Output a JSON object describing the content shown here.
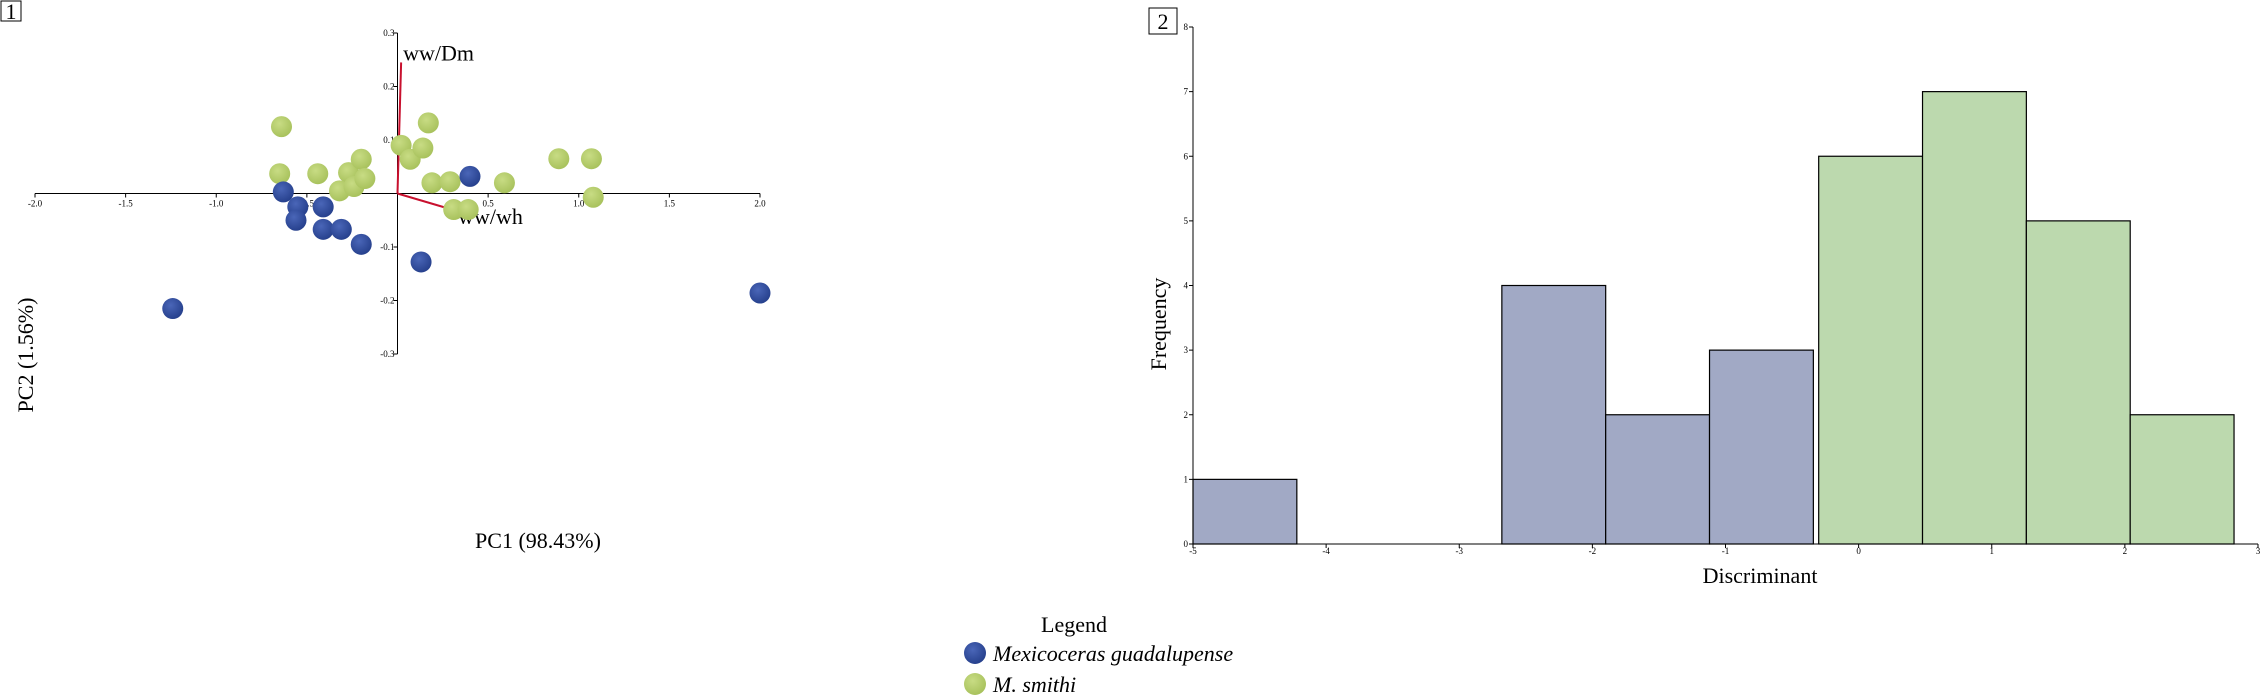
{
  "panel1": {
    "number": "1"
  },
  "panel2": {
    "number": "2"
  },
  "legend": {
    "title": "Legend",
    "items": [
      {
        "label": "Mexicoceras guadalupense",
        "color": "#2e4a9a"
      },
      {
        "label": "M. smithi",
        "color": "#b4cc6a"
      }
    ]
  },
  "chart_data": [
    {
      "type": "scatter",
      "title": "",
      "xlabel": "PC1 (98.43%)",
      "ylabel": "PC2 (1.56%)",
      "xlim": [
        -2.0,
        2.0
      ],
      "ylim": [
        -0.3,
        0.3
      ],
      "xticks": [
        "-2.0",
        "-1.5",
        "-1.0",
        "-0.5",
        "0.5",
        "1.0",
        "1.5",
        "2.0"
      ],
      "yticks": [
        "0.3",
        "0.2",
        "0.1",
        "-0.1",
        "-0.2",
        "-0.3"
      ],
      "grid": false,
      "series": [
        {
          "name": "Mexicoceras guadalupense",
          "color": "#2e4a9a",
          "points": [
            [
              -0.63,
              0.003
            ],
            [
              -0.55,
              -0.025
            ],
            [
              -0.56,
              -0.05
            ],
            [
              -0.41,
              -0.025
            ],
            [
              -0.41,
              -0.067
            ],
            [
              -0.31,
              -0.067
            ],
            [
              -0.2,
              -0.095
            ],
            [
              0.13,
              -0.128
            ],
            [
              0.4,
              0.032
            ],
            [
              -1.24,
              -0.215
            ],
            [
              2.0,
              -0.186
            ]
          ]
        },
        {
          "name": "M. smithi",
          "color": "#b4cc6a",
          "points": [
            [
              -0.64,
              0.125
            ],
            [
              -0.65,
              0.037
            ],
            [
              -0.44,
              0.037
            ],
            [
              -0.27,
              0.039
            ],
            [
              -0.2,
              0.064
            ],
            [
              -0.32,
              0.005
            ],
            [
              -0.24,
              0.013
            ],
            [
              -0.18,
              0.028
            ],
            [
              0.02,
              0.09
            ],
            [
              0.07,
              0.064
            ],
            [
              0.14,
              0.085
            ],
            [
              0.17,
              0.132
            ],
            [
              0.19,
              0.02
            ],
            [
              0.29,
              0.022
            ],
            [
              0.31,
              -0.03
            ],
            [
              0.39,
              -0.03
            ],
            [
              0.59,
              0.02
            ],
            [
              0.89,
              0.065
            ],
            [
              1.07,
              0.065
            ],
            [
              1.08,
              -0.007
            ]
          ]
        }
      ],
      "vectors": [
        {
          "label": "ww/Dm",
          "x": 0.02,
          "y": 0.245,
          "color": "#c8102e"
        },
        {
          "label": "ww/wh",
          "x": 0.29,
          "y": -0.029,
          "color": "#c8102e"
        }
      ]
    },
    {
      "type": "bar",
      "title": "",
      "xlabel": "Discriminant",
      "ylabel": "Frequency",
      "xlim": [
        -5,
        3
      ],
      "ylim": [
        0,
        8
      ],
      "xticks": [
        "-5",
        "-4",
        "-3",
        "-2",
        "-1",
        "0",
        "1",
        "2",
        "3"
      ],
      "yticks": [
        "0",
        "1",
        "2",
        "3",
        "4",
        "5",
        "6",
        "7",
        "8"
      ],
      "grid": false,
      "series": [
        {
          "name": "Mexicoceras guadalupense",
          "color": "#a1a9c5",
          "bins": [
            {
              "x0": -5.0,
              "x1": -4.22,
              "count": 1
            },
            {
              "x0": -2.68,
              "x1": -1.9,
              "count": 4
            },
            {
              "x0": -1.9,
              "x1": -1.12,
              "count": 2
            },
            {
              "x0": -1.12,
              "x1": -0.34,
              "count": 3
            }
          ]
        },
        {
          "name": "M. smithi",
          "color": "#bcd9ae",
          "bins": [
            {
              "x0": -0.3,
              "x1": 0.48,
              "count": 6
            },
            {
              "x0": 0.48,
              "x1": 1.26,
              "count": 7
            },
            {
              "x0": 1.26,
              "x1": 2.04,
              "count": 5
            },
            {
              "x0": 2.04,
              "x1": 2.82,
              "count": 2
            }
          ]
        }
      ]
    }
  ]
}
